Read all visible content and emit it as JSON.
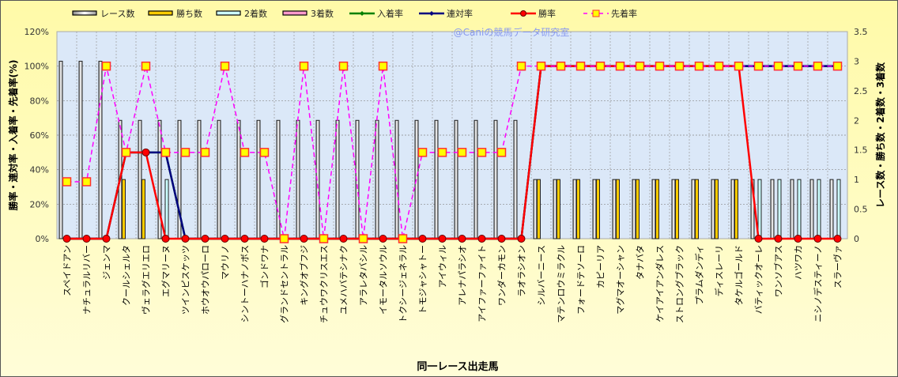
{
  "chart_data": {
    "type": "bar+line",
    "watermark": "@Caniの競馬データ研究室",
    "xlabel": "同一レース出走馬",
    "ylabel_left": "勝率・連対率・入着率・先着率(%)",
    "ylabel_right": "レース数・勝ち数・2着数・3着数",
    "ylim_left": [
      0,
      120
    ],
    "yticks_left": [
      "0%",
      "20%",
      "40%",
      "60%",
      "80%",
      "100%",
      "120%"
    ],
    "ylim_right": [
      0,
      3.5
    ],
    "yticks_right": [
      "0",
      "0.5",
      "1",
      "1.5",
      "2",
      "2.5",
      "3",
      "3.5"
    ],
    "grid": true,
    "legend_position": "top",
    "categories": [
      "スペイドアン",
      "ナチュラルリバー",
      "ジェンマ",
      "クールシェルタ",
      "ヴェラグエリエロ",
      "エグマリーヌ",
      "ツインピスケッツ",
      "ホウオウパローロ",
      "マウリノ",
      "シントーハナノボス",
      "ゴンドワナ",
      "グランドセントラル",
      "キングオブフジ",
      "チュウワクリスエス",
      "ユメハバテシナク",
      "アラレタバシル",
      "イモータルソウル",
      "トクシージェネラル",
      "トモジャシャトー",
      "アイウィル",
      "アレナパラシオ",
      "アイファーファイト",
      "ワンダーカモン",
      "ラオラシオン",
      "シルバーニース",
      "マテンロウミラクル",
      "フォードテソーロ",
      "カピーリア",
      "マグマオーシャン",
      "タナバタ",
      "ケイアイアンダレス",
      "ストロングブラック",
      "プラムダンディ",
      "ディスレーリ",
      "タケルゴールド",
      "バティックオーレ",
      "ワンソブアス",
      "ハツワカ",
      "ニシノデスティーノ",
      "スラーヴァ"
    ],
    "bar_series": [
      {
        "name": "レース数",
        "axis": "right",
        "color": "#d8d8d8",
        "values": [
          3,
          3,
          3,
          2,
          2,
          2,
          2,
          2,
          2,
          2,
          2,
          2,
          2,
          2,
          2,
          2,
          2,
          2,
          2,
          2,
          2,
          2,
          2,
          2,
          1,
          1,
          1,
          1,
          1,
          1,
          1,
          1,
          1,
          1,
          1,
          1,
          1,
          1,
          1,
          1
        ]
      },
      {
        "name": "勝ち数",
        "axis": "right",
        "color": "#ffcc00",
        "values": [
          0,
          0,
          0,
          1,
          1,
          0,
          0,
          0,
          0,
          0,
          0,
          0,
          0,
          0,
          0,
          0,
          0,
          0,
          0,
          0,
          0,
          0,
          0,
          0,
          1,
          1,
          1,
          1,
          1,
          1,
          1,
          1,
          1,
          1,
          1,
          0,
          0,
          0,
          0,
          0
        ]
      },
      {
        "name": "2着数",
        "axis": "right",
        "color": "#ccffff",
        "values": [
          0,
          0,
          0,
          0,
          0,
          1,
          0,
          0,
          0,
          0,
          0,
          0,
          0,
          0,
          0,
          0,
          0,
          0,
          0,
          0,
          0,
          0,
          0,
          0,
          0,
          0,
          0,
          0,
          0,
          0,
          0,
          0,
          0,
          0,
          0,
          1,
          1,
          1,
          1,
          1
        ]
      },
      {
        "name": "3着数",
        "axis": "right",
        "color": "#ff99cc",
        "values": [
          0,
          0,
          0,
          0,
          0,
          0,
          0,
          0,
          0,
          0,
          0,
          0,
          0,
          0,
          0,
          0,
          0,
          0,
          0,
          0,
          0,
          0,
          0,
          0,
          0,
          0,
          0,
          0,
          0,
          0,
          0,
          0,
          0,
          0,
          0,
          0,
          0,
          0,
          0,
          0
        ]
      }
    ],
    "line_series": [
      {
        "name": "入着率",
        "axis": "left",
        "color": "#008000",
        "marker": "diamond",
        "dash": false,
        "values": [
          0,
          0,
          0,
          50,
          50,
          50,
          0,
          0,
          0,
          0,
          0,
          0,
          0,
          0,
          0,
          0,
          0,
          0,
          0,
          0,
          0,
          0,
          0,
          0,
          100,
          100,
          100,
          100,
          100,
          100,
          100,
          100,
          100,
          100,
          100,
          100,
          100,
          100,
          100,
          100
        ]
      },
      {
        "name": "連対率",
        "axis": "left",
        "color": "#000080",
        "marker": "diamond",
        "dash": false,
        "values": [
          0,
          0,
          0,
          50,
          50,
          50,
          0,
          0,
          0,
          0,
          0,
          0,
          0,
          0,
          0,
          0,
          0,
          0,
          0,
          0,
          0,
          0,
          0,
          0,
          100,
          100,
          100,
          100,
          100,
          100,
          100,
          100,
          100,
          100,
          100,
          100,
          100,
          100,
          100,
          100
        ]
      },
      {
        "name": "勝率",
        "axis": "left",
        "color": "#ff0000",
        "marker": "circle",
        "dash": false,
        "values": [
          0,
          0,
          0,
          50,
          50,
          0,
          0,
          0,
          0,
          0,
          0,
          0,
          0,
          0,
          0,
          0,
          0,
          0,
          0,
          0,
          0,
          0,
          0,
          0,
          100,
          100,
          100,
          100,
          100,
          100,
          100,
          100,
          100,
          100,
          100,
          0,
          0,
          0,
          0,
          0
        ]
      },
      {
        "name": "先着率",
        "axis": "left",
        "color": "#ff00ff",
        "marker": "square",
        "dash": true,
        "values": [
          33,
          33,
          100,
          50,
          100,
          50,
          50,
          50,
          100,
          50,
          50,
          0,
          100,
          0,
          100,
          0,
          100,
          0,
          50,
          50,
          50,
          50,
          50,
          100,
          100,
          100,
          100,
          100,
          100,
          100,
          100,
          100,
          100,
          100,
          100,
          100,
          100,
          100,
          100,
          100
        ]
      }
    ]
  }
}
